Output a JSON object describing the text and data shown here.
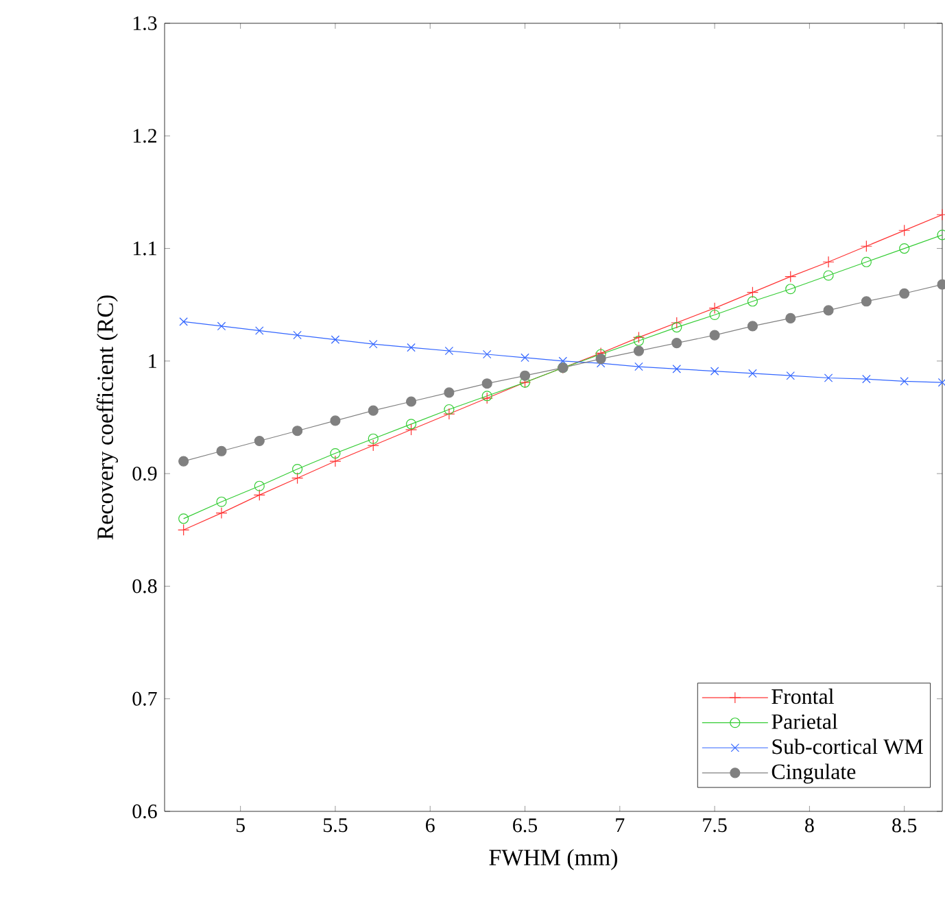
{
  "chart_data": {
    "type": "line",
    "xlabel": "FWHM (mm)",
    "ylabel": "Recovery coefficient (RC)",
    "x": [
      4.7,
      4.9,
      5.1,
      5.3,
      5.5,
      5.7,
      5.9,
      6.1,
      6.3,
      6.5,
      6.7,
      6.9,
      7.1,
      7.3,
      7.5,
      7.7,
      7.9,
      8.1,
      8.3,
      8.5,
      8.7
    ],
    "series": [
      {
        "name": "Frontal",
        "color": "#ff3333",
        "marker": "plus",
        "values": [
          0.85,
          0.865,
          0.881,
          0.896,
          0.911,
          0.925,
          0.939,
          0.953,
          0.967,
          0.981,
          0.994,
          1.007,
          1.021,
          1.034,
          1.047,
          1.061,
          1.075,
          1.088,
          1.102,
          1.116,
          1.13
        ]
      },
      {
        "name": "Parietal",
        "color": "#33cc33",
        "marker": "circle",
        "values": [
          0.86,
          0.875,
          0.889,
          0.904,
          0.918,
          0.931,
          0.944,
          0.957,
          0.969,
          0.981,
          0.994,
          1.006,
          1.018,
          1.03,
          1.041,
          1.053,
          1.064,
          1.076,
          1.088,
          1.1,
          1.112
        ]
      },
      {
        "name": "Sub-cortical WM",
        "color": "#3366ff",
        "marker": "cross",
        "values": [
          1.035,
          1.031,
          1.027,
          1.023,
          1.019,
          1.015,
          1.012,
          1.009,
          1.006,
          1.003,
          1.0,
          0.998,
          0.995,
          0.993,
          0.991,
          0.989,
          0.987,
          0.985,
          0.984,
          0.982,
          0.981
        ]
      },
      {
        "name": "Cingulate",
        "color": "#808080",
        "marker": "dot",
        "values": [
          0.911,
          0.92,
          0.929,
          0.938,
          0.947,
          0.956,
          0.964,
          0.972,
          0.98,
          0.987,
          0.994,
          1.002,
          1.009,
          1.016,
          1.023,
          1.031,
          1.038,
          1.045,
          1.053,
          1.06,
          1.068
        ]
      }
    ],
    "xlim": [
      4.6,
      8.7
    ],
    "ylim": [
      0.6,
      1.3
    ],
    "xticks": [
      5,
      5.5,
      6,
      6.5,
      7,
      7.5,
      8,
      8.5
    ],
    "yticks": [
      0.6,
      0.7,
      0.8,
      0.9,
      1,
      1.1,
      1.2,
      1.3
    ],
    "legend": "bottom right",
    "grid": false
  }
}
